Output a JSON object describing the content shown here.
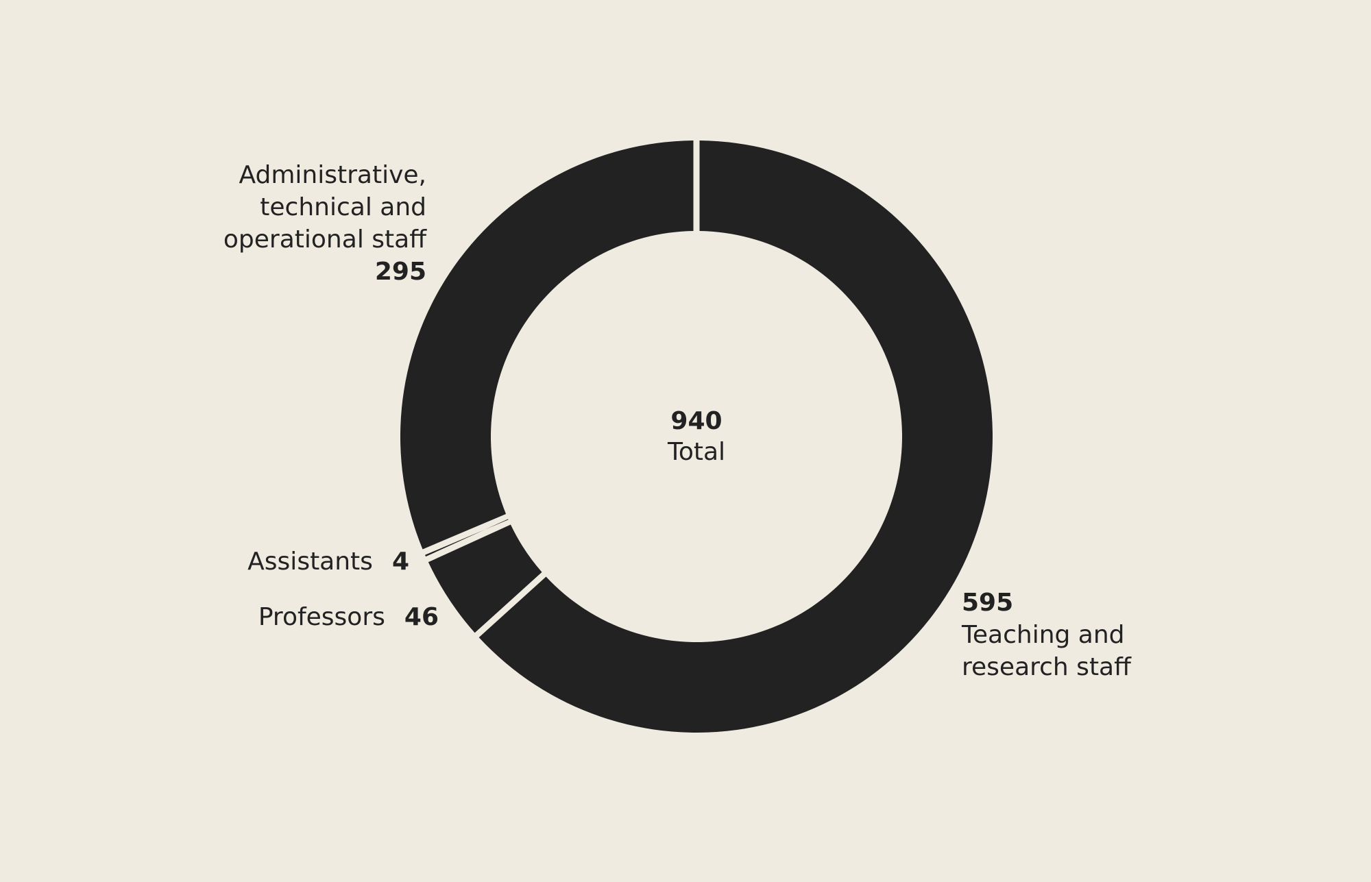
{
  "chart_data": {
    "type": "pie",
    "variant": "donut",
    "background": "#f0ebe1",
    "slice_color": "#222222",
    "total": {
      "value": "940",
      "label": "Total"
    },
    "slices": [
      {
        "label_lines": [
          "Teaching and",
          "research staff"
        ],
        "value": 595,
        "value_text": "595"
      },
      {
        "label_lines": [
          "Professors"
        ],
        "value": 46,
        "value_text": "46"
      },
      {
        "label_lines": [
          "Assistants"
        ],
        "value": 4,
        "value_text": "4"
      },
      {
        "label_lines": [
          "Administrative,",
          "technical and",
          "operational staff"
        ],
        "value": 295,
        "value_text": "295"
      }
    ]
  }
}
